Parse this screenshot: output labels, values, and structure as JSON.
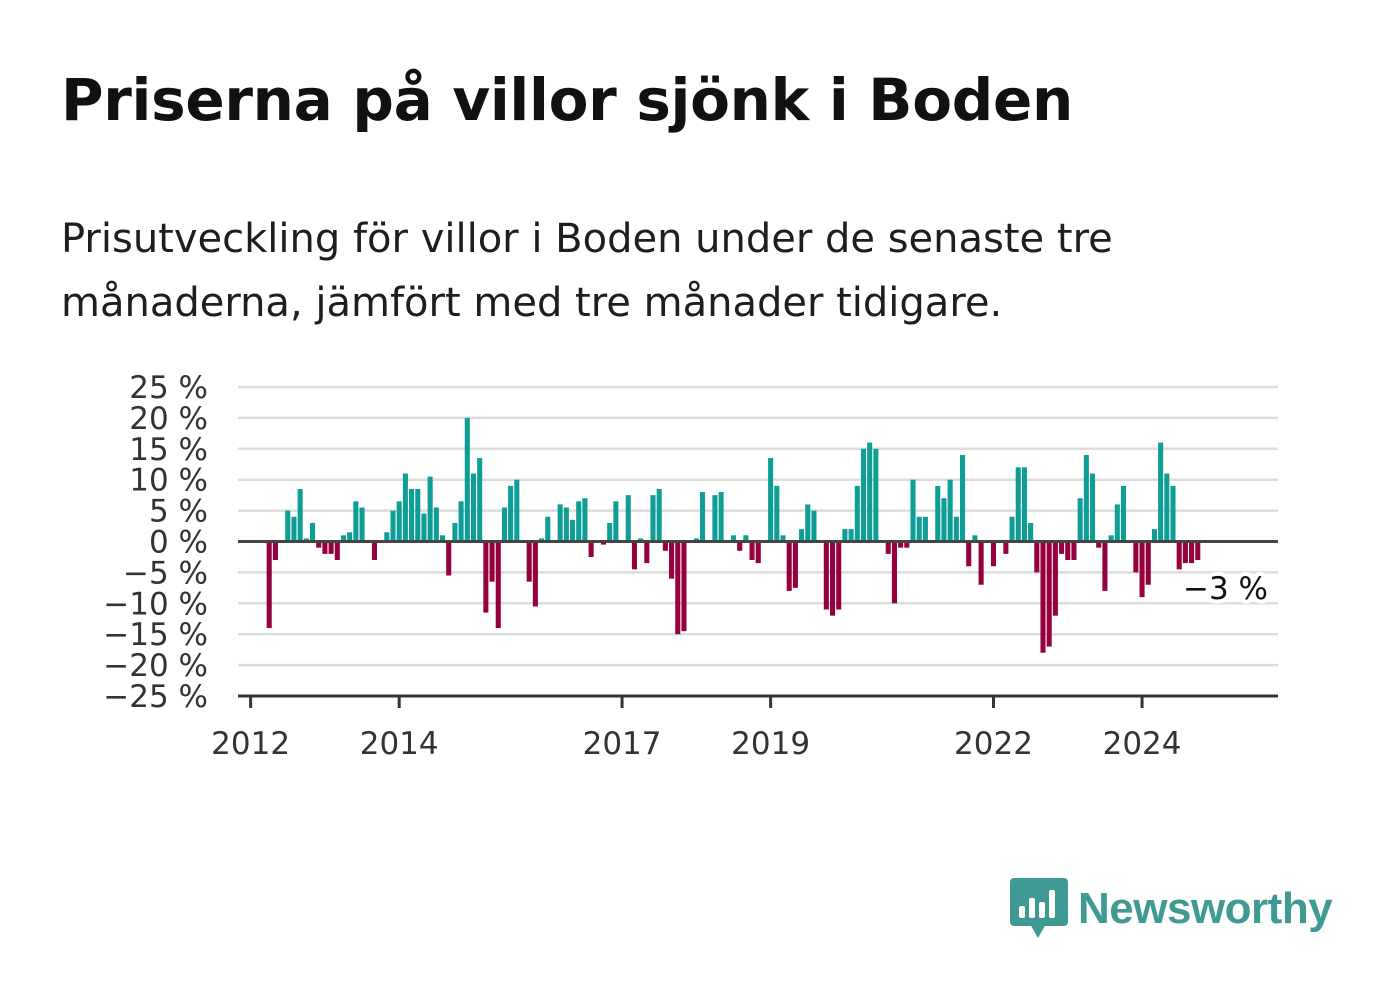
{
  "title": "Priserna på villor sjönk i Boden",
  "subtitle": "Prisutveckling för villor i Boden under de senaste tre månaderna, jämfört med tre månader tidigare.",
  "brand": {
    "name": "Newsworthy",
    "icon": "bar-chart-speech-bubble-icon",
    "color": "#3f9a94"
  },
  "colors": {
    "positive": "#0f9e96",
    "negative": "#96003e"
  },
  "chart_data": {
    "type": "bar",
    "ylim": [
      -25,
      25
    ],
    "yticks": [
      25,
      20,
      15,
      10,
      5,
      0,
      -5,
      -10,
      -15,
      -20,
      -25
    ],
    "ytick_labels": [
      "25 %",
      "20 %",
      "15 %",
      "10 %",
      "5 %",
      "0 %",
      "−5 %",
      "−10 %",
      "−15 %",
      "−20 %",
      "−25 %"
    ],
    "xticks": [
      2012,
      2014,
      2017,
      2019,
      2022,
      2024
    ],
    "xtick_labels": [
      "2012",
      "2014",
      "2017",
      "2019",
      "2022",
      "2024"
    ],
    "xlim": [
      2011.83,
      2025.83
    ],
    "grid": true,
    "last_value_label": "−3 %",
    "series": [
      {
        "start": 2012.25,
        "step_months": 1,
        "values": [
          -14,
          -3,
          0,
          5,
          4,
          8.5,
          0.5,
          3,
          -1,
          -2,
          -2,
          -3,
          1,
          1.5,
          6.5,
          5.5,
          0,
          -3,
          0,
          1.5,
          5,
          6.5,
          11,
          8.5,
          8.5,
          4.5,
          10.5,
          5.5,
          1,
          -5.5,
          3,
          6.5,
          20,
          11,
          13.5,
          -11.5,
          -6.5,
          -14,
          5.5,
          9,
          10,
          0,
          -6.5,
          -10.5,
          0.5,
          4,
          0,
          6,
          5.5,
          3.5,
          6.5,
          7,
          -2.5,
          0,
          -0.5,
          3,
          6.5,
          0,
          7.5,
          -4.5,
          0.5,
          -3.5,
          7.5,
          8.5,
          -1.5,
          -6,
          -15,
          -14.5,
          0,
          0.5,
          8,
          0,
          7.5,
          8,
          0,
          1,
          -1.5,
          1,
          -3,
          -3.5,
          0,
          13.5,
          9,
          1,
          -8,
          -7.5,
          2,
          6,
          5,
          0,
          -11,
          -12,
          -11,
          2,
          2,
          9,
          15,
          16,
          15,
          0,
          -2,
          -10,
          -1,
          -1,
          10,
          4,
          4,
          0,
          9,
          7,
          10,
          4,
          14,
          -4,
          1,
          -7,
          0,
          -4,
          0,
          -2,
          4,
          12,
          12,
          3,
          -5,
          -18,
          -17,
          -12,
          -2,
          -3,
          -3,
          7,
          14,
          11,
          -1,
          -8,
          1,
          6,
          9,
          0,
          -5,
          -9,
          -7,
          2,
          16,
          11,
          9,
          -4.5,
          -3.5,
          -3.5,
          -3
        ]
      }
    ]
  }
}
